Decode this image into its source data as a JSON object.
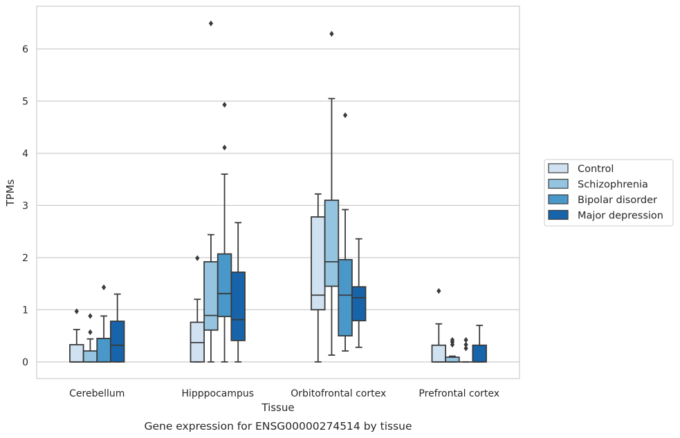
{
  "caption": "Gene expression for ENSG00000274514 by tissue",
  "chart_data": {
    "type": "box",
    "xlabel": "Tissue",
    "ylabel": "TPMs",
    "ylim": [
      -0.32,
      6.82
    ],
    "yticks": [
      0,
      1,
      2,
      3,
      4,
      5,
      6
    ],
    "grid": true,
    "legend_position": "right, outside",
    "categories": [
      "Cerebellum",
      "Hipppocampus",
      "Orbitofrontal cortex",
      "Prefrontal cortex"
    ],
    "series": [
      {
        "name": "Control",
        "color": "#d0e1f2",
        "boxes": [
          {
            "min": 0,
            "q1": 0,
            "median": 0,
            "q3": 0.33,
            "max": 0.62,
            "outliers": [
              0.97
            ]
          },
          {
            "min": 0,
            "q1": 0,
            "median": 0.37,
            "q3": 0.76,
            "max": 1.2,
            "outliers": [
              1.99
            ]
          },
          {
            "min": 0,
            "q1": 1.0,
            "median": 1.28,
            "q3": 2.78,
            "max": 3.22,
            "outliers": []
          },
          {
            "min": 0,
            "q1": 0,
            "median": 0,
            "q3": 0.32,
            "max": 0.73,
            "outliers": [
              1.36
            ]
          }
        ]
      },
      {
        "name": "Schizophrenia",
        "color": "#94c4df",
        "boxes": [
          {
            "min": 0,
            "q1": 0,
            "median": 0,
            "q3": 0.21,
            "max": 0.44,
            "outliers": [
              0.57,
              0.88
            ]
          },
          {
            "min": 0,
            "q1": 0.61,
            "median": 0.89,
            "q3": 1.92,
            "max": 2.44,
            "outliers": [
              6.49
            ]
          },
          {
            "min": 0.13,
            "q1": 1.45,
            "median": 1.92,
            "q3": 3.1,
            "max": 5.05,
            "outliers": [
              6.29
            ]
          },
          {
            "min": 0,
            "q1": 0,
            "median": 0,
            "q3": 0.09,
            "max": 0.11,
            "outliers": [
              0.33,
              0.38,
              0.42
            ]
          }
        ]
      },
      {
        "name": "Bipolar disorder",
        "color": "#4a98c9",
        "boxes": [
          {
            "min": 0,
            "q1": 0,
            "median": 0,
            "q3": 0.45,
            "max": 0.88,
            "outliers": [
              1.43
            ]
          },
          {
            "min": 0,
            "q1": 0.87,
            "median": 1.31,
            "q3": 2.07,
            "max": 3.6,
            "outliers": [
              4.11,
              4.93
            ]
          },
          {
            "min": 0.21,
            "q1": 0.5,
            "median": 1.28,
            "q3": 1.96,
            "max": 2.92,
            "outliers": [
              4.73
            ]
          },
          {
            "min": 0,
            "q1": 0,
            "median": 0,
            "q3": 0,
            "max": 0,
            "outliers": [
              0.26,
              0.33,
              0.42
            ]
          }
        ]
      },
      {
        "name": "Major depression",
        "color": "#1764ab",
        "boxes": [
          {
            "min": 0,
            "q1": 0,
            "median": 0.32,
            "q3": 0.78,
            "max": 1.3,
            "outliers": []
          },
          {
            "min": 0,
            "q1": 0.41,
            "median": 0.81,
            "q3": 1.72,
            "max": 2.67,
            "outliers": []
          },
          {
            "min": 0.28,
            "q1": 0.79,
            "median": 1.23,
            "q3": 1.44,
            "max": 2.36,
            "outliers": []
          },
          {
            "min": 0,
            "q1": 0,
            "median": 0,
            "q3": 0.32,
            "max": 0.7,
            "outliers": []
          }
        ]
      }
    ]
  }
}
